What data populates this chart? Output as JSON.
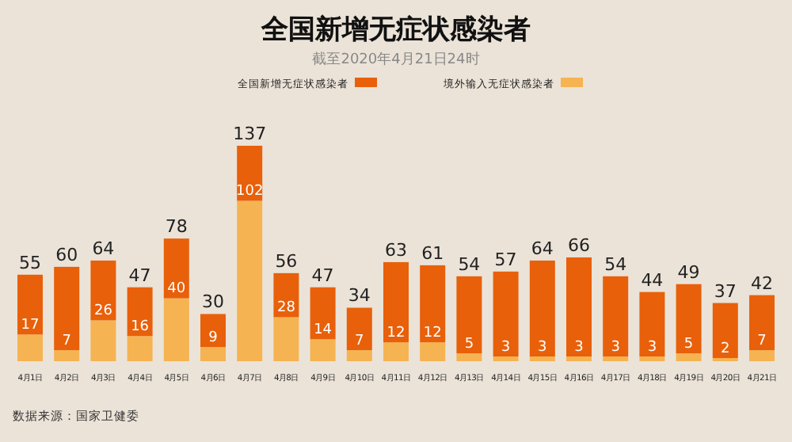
{
  "chart_data": {
    "type": "bar",
    "title": "全国新增无症状感染者",
    "subtitle": "截至2020年4月21日24时",
    "categories": [
      "4月1日",
      "4月2日",
      "4月3日",
      "4月4日",
      "4月5日",
      "4月6日",
      "4月7日",
      "4月8日",
      "4月9日",
      "4月10日",
      "4月11日",
      "4月12日",
      "4月13日",
      "4月14日",
      "4月15日",
      "4月16日",
      "4月17日",
      "4月18日",
      "4月19日",
      "4月20日",
      "4月21日"
    ],
    "stacked": true,
    "legend": "top",
    "series": [
      {
        "name": "境外输入无症状感染者",
        "color": "#f6b352",
        "values": [
          17,
          7,
          26,
          16,
          40,
          9,
          102,
          28,
          14,
          7,
          12,
          12,
          5,
          3,
          3,
          3,
          3,
          3,
          5,
          2,
          7
        ],
        "value_labels": [
          "17",
          "7",
          "26",
          "16",
          "40",
          "9",
          "102",
          "28",
          "14",
          "7",
          "12",
          "12",
          "5",
          "3",
          "3",
          "3",
          "3",
          "3",
          "5",
          "2",
          "7"
        ]
      },
      {
        "name": "全国新增无症状感染者",
        "color": "#e8600a",
        "values": [
          38,
          53,
          38,
          31,
          38,
          21,
          35,
          28,
          33,
          27,
          51,
          49,
          49,
          54,
          61,
          63,
          51,
          41,
          44,
          35,
          35
        ]
      }
    ],
    "totals": [
      "55",
      "60",
      "64",
      "47",
      "78",
      "30",
      "137",
      "56",
      "47",
      "34",
      "63",
      "61",
      "54",
      "57",
      "64",
      "66",
      "54",
      "44",
      "49",
      "37",
      "42"
    ],
    "annotations": [
      "数据来源：国家卫健委"
    ]
  }
}
